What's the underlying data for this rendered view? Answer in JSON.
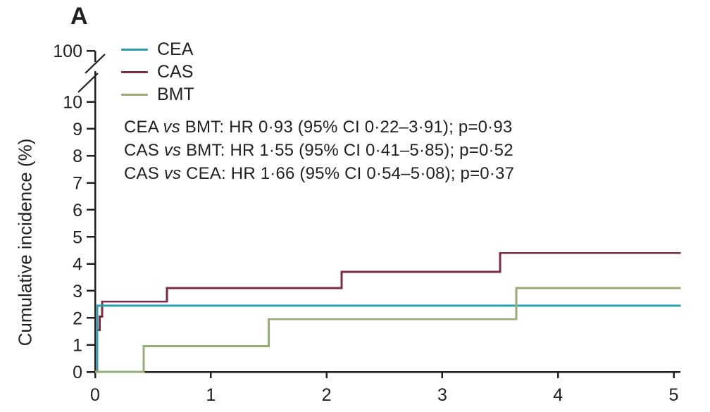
{
  "panel_label": "A",
  "colors": {
    "axis": "#231f20",
    "cea": "#2a9fab",
    "cas": "#7e2b46",
    "bmt": "#99ac75"
  },
  "legend": [
    {
      "name": "CEA",
      "color": "#2a9fab"
    },
    {
      "name": "CAS",
      "color": "#7e2b46"
    },
    {
      "name": "BMT",
      "color": "#99ac75"
    }
  ],
  "annotations": [
    {
      "parts": [
        {
          "t": "CEA ",
          "i": false
        },
        {
          "t": "vs",
          "i": true
        },
        {
          "t": " BMT: HR 0·93 (95% CI 0·22–3·91); p=0·93",
          "i": false
        }
      ]
    },
    {
      "parts": [
        {
          "t": "CAS ",
          "i": false
        },
        {
          "t": "vs",
          "i": true
        },
        {
          "t": " BMT: HR 1·55 (95% CI 0·41–5·85); p=0·52",
          "i": false
        }
      ]
    },
    {
      "parts": [
        {
          "t": "CAS ",
          "i": false
        },
        {
          "t": "vs",
          "i": true
        },
        {
          "t": " CEA: HR 1·66 (95% CI 0·54–5·08); p=0·37",
          "i": false
        }
      ]
    }
  ],
  "chart_data": {
    "type": "line",
    "subtype": "step-cumulative-incidence",
    "title": "",
    "xlabel": "",
    "ylabel": "Cumulative incidence (%)",
    "xlim": [
      0,
      5
    ],
    "ylim_main": [
      0,
      10
    ],
    "xticks": [
      0,
      1,
      2,
      3,
      4,
      5
    ],
    "yticks": [
      0,
      1,
      2,
      3,
      4,
      5,
      6,
      7,
      8,
      9,
      10
    ],
    "y_axis_break": {
      "present": true,
      "top_tick_label": "100"
    },
    "grid": false,
    "legend_position": "top-left-inside",
    "series": [
      {
        "name": "CEA",
        "color": "#2a9fab",
        "vertices": [
          [
            0,
            0
          ],
          [
            0.02,
            0
          ],
          [
            0.02,
            2.45
          ],
          [
            5.06,
            2.45
          ]
        ]
      },
      {
        "name": "CAS",
        "color": "#7e2b46",
        "vertices": [
          [
            0,
            0
          ],
          [
            0.02,
            0
          ],
          [
            0.02,
            1.55
          ],
          [
            0.04,
            1.55
          ],
          [
            0.04,
            2.05
          ],
          [
            0.06,
            2.05
          ],
          [
            0.06,
            2.6
          ],
          [
            0.62,
            2.6
          ],
          [
            0.62,
            3.1
          ],
          [
            2.13,
            3.1
          ],
          [
            2.13,
            3.7
          ],
          [
            3.5,
            3.7
          ],
          [
            3.5,
            4.4
          ],
          [
            5.06,
            4.4
          ]
        ]
      },
      {
        "name": "BMT",
        "color": "#99ac75",
        "vertices": [
          [
            0,
            0
          ],
          [
            0.42,
            0
          ],
          [
            0.42,
            0.95
          ],
          [
            1.5,
            0.95
          ],
          [
            1.5,
            1.95
          ],
          [
            3.64,
            1.95
          ],
          [
            3.64,
            3.1
          ],
          [
            5.06,
            3.1
          ]
        ]
      }
    ]
  }
}
